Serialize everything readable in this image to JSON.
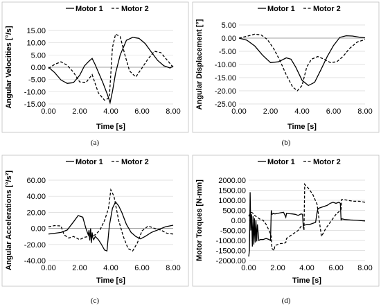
{
  "chart_data": [
    {
      "type": "line",
      "caption": "(a)",
      "ylabel": "Angular Velocities [°/s]",
      "xlabel": "Time [s]",
      "xlim": [
        0,
        8
      ],
      "ylim": [
        -15,
        15
      ],
      "xticks": [
        "0.00",
        "2.00",
        "4.00",
        "6.00",
        "8.00"
      ],
      "yticks": [
        "15.00",
        "10.00",
        "5.00",
        "0.00",
        "-5.00",
        "-10.00",
        "-15.00"
      ],
      "legend_position": "top",
      "series": [
        {
          "name": "Motor 1",
          "style": "solid",
          "x": [
            0,
            0.4,
            0.8,
            1.2,
            1.6,
            2.0,
            2.3,
            2.6,
            2.8,
            3.0,
            3.2,
            3.5,
            3.8,
            3.95,
            4.1,
            4.3,
            4.6,
            5.0,
            5.4,
            5.8,
            6.2,
            6.6,
            7.0,
            7.4,
            7.8,
            8.0
          ],
          "y": [
            0,
            -2.2,
            -5.2,
            -6.6,
            -6.3,
            -3.3,
            0.5,
            2.5,
            3.6,
            1.0,
            -2.0,
            -6.5,
            -11.5,
            -14.5,
            -10.0,
            -2.5,
            5.0,
            11.0,
            12.2,
            11.8,
            9.7,
            6.2,
            2.8,
            0.6,
            -0.3,
            0.5
          ]
        },
        {
          "name": "Motor 2",
          "style": "dashed",
          "x": [
            0,
            0.4,
            0.8,
            1.2,
            1.6,
            2.0,
            2.4,
            2.8,
            3.2,
            3.6,
            3.9,
            4.1,
            4.3,
            4.6,
            4.9,
            5.2,
            5.6,
            6.0,
            6.4,
            6.8,
            7.2,
            7.6,
            8.0
          ],
          "y": [
            -0.5,
            1.2,
            2.2,
            0.8,
            -2.0,
            -6.0,
            -6.3,
            -3.0,
            -10.5,
            -13.5,
            -12.5,
            8.0,
            13.5,
            12.5,
            5.0,
            -1.5,
            -4.0,
            -0.3,
            3.5,
            6.5,
            6.0,
            3.0,
            0.0
          ]
        }
      ]
    },
    {
      "type": "line",
      "caption": "(b)",
      "ylabel": "Angular Displacement [°]",
      "xlabel": "Time [s]",
      "xlim": [
        0,
        8
      ],
      "ylim": [
        -25,
        5
      ],
      "xticks": [
        "0.00",
        "2.00",
        "4.00",
        "6.00",
        "8.00"
      ],
      "yticks": [
        "5.00",
        "0.00",
        "-5.00",
        "-10.00",
        "-15.00",
        "-20.00",
        "-25.00"
      ],
      "legend_position": "top",
      "series": [
        {
          "name": "Motor 1",
          "style": "solid",
          "x": [
            0,
            0.5,
            1.0,
            1.5,
            2.0,
            2.5,
            3.0,
            3.3,
            3.6,
            4.0,
            4.4,
            4.8,
            5.2,
            5.6,
            6.0,
            6.4,
            6.8,
            7.2,
            7.6,
            8.0
          ],
          "y": [
            0,
            -0.8,
            -3.0,
            -6.5,
            -9.3,
            -9.0,
            -7.5,
            -8.0,
            -11.0,
            -16.0,
            -18.0,
            -16.8,
            -12.0,
            -7.0,
            -2.8,
            0.3,
            0.9,
            0.8,
            0.4,
            0.1
          ]
        },
        {
          "name": "Motor 2",
          "style": "dashed",
          "x": [
            0,
            0.5,
            1.0,
            1.4,
            1.8,
            2.2,
            2.6,
            3.0,
            3.4,
            3.7,
            4.0,
            4.3,
            4.6,
            5.0,
            5.4,
            5.8,
            6.2,
            6.6,
            7.0,
            7.5,
            8.0
          ],
          "y": [
            0,
            0.7,
            1.5,
            1.2,
            -0.5,
            -4.0,
            -8.5,
            -14.0,
            -18.5,
            -20.0,
            -18.0,
            -11.0,
            -8.0,
            -7.0,
            -8.0,
            -9.3,
            -9.0,
            -7.0,
            -4.0,
            -1.5,
            -0.5
          ]
        }
      ]
    },
    {
      "type": "line",
      "caption": "(c)",
      "ylabel": "Angular Accelerations [°/s²]",
      "xlabel": "Time [s]",
      "xlim": [
        0,
        8
      ],
      "ylim": [
        -40,
        60
      ],
      "xticks": [
        "0.00",
        "2.00",
        "4.00",
        "6.00",
        "8.00"
      ],
      "yticks": [
        "60.00",
        "40.00",
        "20.00",
        "0.00",
        "-20.00",
        "-40.00"
      ],
      "legend_position": "top",
      "series": [
        {
          "name": "Motor 1",
          "style": "solid",
          "x": [
            0,
            0.4,
            0.8,
            1.2,
            1.6,
            1.9,
            2.2,
            2.4,
            2.55,
            2.6,
            2.65,
            2.7,
            2.75,
            2.8,
            2.85,
            2.9,
            3.0,
            3.2,
            3.4,
            3.6,
            3.75,
            3.9,
            4.1,
            4.3,
            4.5,
            4.7,
            5.0,
            5.3,
            5.6,
            5.9,
            6.2,
            6.6,
            7.0,
            7.5,
            8.0
          ],
          "y": [
            -7,
            -6,
            -5,
            -2,
            8,
            16,
            14,
            0,
            -8,
            -2,
            -15,
            0,
            -18,
            -5,
            -12,
            -14,
            -10,
            -14,
            -20,
            -27,
            -28,
            3,
            25,
            33,
            28,
            20,
            5,
            -5,
            -10,
            -13,
            -10,
            -5,
            -2,
            2,
            4
          ]
        },
        {
          "name": "Motor 2",
          "style": "dashed",
          "x": [
            0,
            0.4,
            0.8,
            1.0,
            1.3,
            1.6,
            2.0,
            2.3,
            2.6,
            3.0,
            3.3,
            3.6,
            3.85,
            4.0,
            4.2,
            4.5,
            4.8,
            5.1,
            5.4,
            5.7,
            6.0,
            6.4,
            6.8,
            7.2,
            7.6,
            8.0
          ],
          "y": [
            2,
            3.5,
            3,
            -8,
            -12,
            -10,
            -14,
            -11,
            -10,
            -8,
            -2,
            10,
            25,
            48,
            40,
            10,
            -10,
            -25,
            -28,
            -18,
            -3,
            3,
            0,
            -2,
            -6,
            -7
          ]
        }
      ]
    },
    {
      "type": "line",
      "caption": "(d)",
      "ylabel": "Motor Torques [N-mm]",
      "xlabel": "Time [s]",
      "xlim": [
        0,
        8
      ],
      "ylim": [
        -2000,
        2000
      ],
      "xticks": [
        "0.00",
        "2.00",
        "4.00",
        "6.00",
        "8.00"
      ],
      "yticks": [
        "2000.00",
        "1500.00",
        "1000.00",
        "500.00",
        "0.00",
        "-500.00",
        "-1000.00",
        "-1500.00",
        "-2000.00"
      ],
      "legend_position": "top",
      "series": [
        {
          "name": "Motor 1",
          "style": "solid",
          "x": [
            0,
            0.05,
            0.1,
            0.15,
            0.2,
            0.25,
            0.3,
            0.35,
            0.4,
            0.45,
            0.5,
            0.55,
            0.6,
            0.7,
            0.8,
            1.0,
            1.2,
            1.4,
            1.5,
            1.55,
            1.6,
            1.7,
            1.8,
            2.0,
            2.2,
            2.4,
            2.55,
            2.6,
            2.8,
            3.0,
            3.2,
            3.4,
            3.6,
            3.7,
            3.75,
            3.8,
            4.0,
            4.2,
            4.4,
            4.6,
            4.7,
            4.75,
            4.8,
            5.0,
            5.2,
            5.4,
            5.6,
            5.8,
            6.0,
            6.2,
            6.3,
            6.35,
            6.4,
            6.6,
            7.0,
            7.5,
            8.0
          ],
          "y": [
            -1800,
            -1500,
            1400,
            -500,
            300,
            -1300,
            200,
            -1200,
            100,
            -1100,
            0,
            -1050,
            -200,
            -1000,
            -950,
            -950,
            -900,
            -950,
            -1000,
            500,
            300,
            350,
            320,
            350,
            380,
            400,
            150,
            350,
            330,
            320,
            300,
            250,
            320,
            300,
            -300,
            -250,
            -200,
            -200,
            -150,
            -100,
            400,
            550,
            600,
            650,
            700,
            750,
            850,
            900,
            850,
            900,
            850,
            0,
            80,
            50,
            20,
            0,
            -30
          ]
        },
        {
          "name": "Motor 2",
          "style": "dashed",
          "x": [
            0,
            0.1,
            0.2,
            0.3,
            0.4,
            0.5,
            0.6,
            0.7,
            0.8,
            1.0,
            1.2,
            1.4,
            1.55,
            1.6,
            1.75,
            1.8,
            2.0,
            2.2,
            2.4,
            2.55,
            2.6,
            2.8,
            3.0,
            3.2,
            3.4,
            3.6,
            3.75,
            3.8,
            3.85,
            3.9,
            4.1,
            4.4,
            4.7,
            5.0,
            5.3,
            5.6,
            6.0,
            6.3,
            6.35,
            6.4,
            6.8,
            7.2,
            7.6,
            8.0
          ],
          "y": [
            200,
            350,
            400,
            350,
            250,
            200,
            150,
            100,
            50,
            0,
            -200,
            -500,
            -800,
            -1400,
            -1500,
            -1250,
            -1200,
            -1150,
            -1150,
            -1100,
            -900,
            -800,
            -700,
            -600,
            -500,
            -300,
            -300,
            -500,
            1800,
            1750,
            1600,
            1300,
            800,
            -800,
            -400,
            -100,
            300,
            500,
            550,
            1050,
            1000,
            950,
            950,
            900
          ]
        }
      ]
    }
  ]
}
